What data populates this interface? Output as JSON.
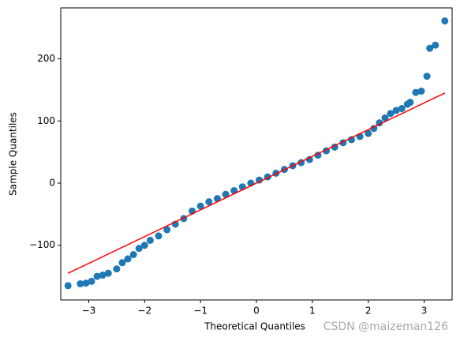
{
  "chart_data": {
    "type": "scatter",
    "xlabel": "Theoretical Quantiles",
    "ylabel": "Sample Quantiles",
    "watermark": "CSDN @maizeman126",
    "xlim": [
      -3.5,
      3.5
    ],
    "ylim": [
      -188,
      282
    ],
    "xticks": [
      {
        "value": -3,
        "label": "−3"
      },
      {
        "value": -2,
        "label": "−2"
      },
      {
        "value": -1,
        "label": "−1"
      },
      0,
      1,
      2,
      3
    ],
    "yticks": [
      {
        "value": -100,
        "label": "−100"
      },
      0,
      100,
      200
    ],
    "series": [
      {
        "color": "#1f77b4",
        "x": [
          -3.37,
          -3.15,
          -3.05,
          -2.95,
          -2.85,
          -2.75,
          -2.65,
          -2.5,
          -2.4,
          -2.3,
          -2.2,
          -2.1,
          -2.0,
          -1.9,
          -1.75,
          -1.6,
          -1.45,
          -1.3,
          -1.15,
          -1.0,
          -0.85,
          -0.7,
          -0.55,
          -0.4,
          -0.25,
          -0.1,
          0.05,
          0.2,
          0.35,
          0.5,
          0.65,
          0.8,
          0.95,
          1.1,
          1.25,
          1.4,
          1.55,
          1.7,
          1.85,
          2.0,
          2.1,
          2.2,
          2.3,
          2.4,
          2.5,
          2.6,
          2.7,
          2.75,
          2.85,
          2.95,
          3.05,
          3.1,
          3.2,
          3.37
        ],
        "values": [
          -165,
          -162,
          -161,
          -158,
          -150,
          -148,
          -145,
          -138,
          -128,
          -122,
          -115,
          -105,
          -100,
          -92,
          -85,
          -75,
          -66,
          -57,
          -45,
          -37,
          -30,
          -25,
          -18,
          -12,
          -6,
          0,
          5,
          10,
          16,
          22,
          28,
          33,
          38,
          45,
          52,
          58,
          65,
          70,
          75,
          80,
          88,
          97,
          105,
          112,
          117,
          120,
          127,
          130,
          146,
          148,
          172,
          217,
          222,
          261
        ]
      }
    ],
    "line": {
      "color": "#ff0000",
      "x": [
        -3.37,
        3.37
      ],
      "values": [
        -145,
        145
      ]
    }
  }
}
